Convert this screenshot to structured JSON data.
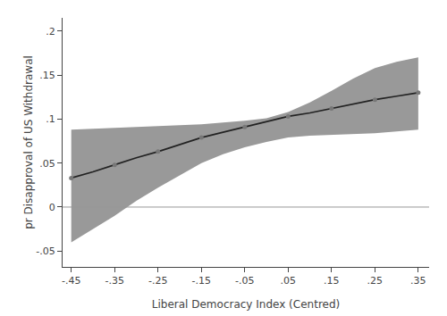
{
  "chart_data": {
    "type": "line",
    "x": [
      -0.45,
      -0.4,
      -0.35,
      -0.3,
      -0.25,
      -0.2,
      -0.15,
      -0.1,
      -0.05,
      0.0,
      0.05,
      0.1,
      0.15,
      0.2,
      0.25,
      0.3,
      0.35
    ],
    "values": [
      0.033,
      0.04,
      0.048,
      0.056,
      0.063,
      0.071,
      0.079,
      0.085,
      0.091,
      0.097,
      0.103,
      0.107,
      0.112,
      0.117,
      0.122,
      0.126,
      0.13
    ],
    "color": "#222222",
    "band": {
      "upper": [
        0.088,
        0.089,
        0.09,
        0.091,
        0.092,
        0.093,
        0.094,
        0.096,
        0.098,
        0.101,
        0.108,
        0.119,
        0.132,
        0.146,
        0.158,
        0.165,
        0.17
      ],
      "lower": [
        -0.04,
        -0.025,
        -0.01,
        0.007,
        0.022,
        0.036,
        0.05,
        0.06,
        0.068,
        0.074,
        0.079,
        0.081,
        0.082,
        0.083,
        0.084,
        0.086,
        0.088
      ],
      "color": "#999999"
    },
    "markers": {
      "x": [
        -0.45,
        -0.35,
        -0.25,
        -0.15,
        -0.05,
        0.05,
        0.15,
        0.25,
        0.35
      ],
      "values": [
        0.033,
        0.048,
        0.063,
        0.079,
        0.091,
        0.103,
        0.112,
        0.122,
        0.13
      ],
      "color": "#777777",
      "marker": "circle"
    },
    "reference_line": {
      "y": 0,
      "color": "#999999"
    },
    "xlabel": "Liberal Democracy Index (Centred)",
    "ylabel": "pr Disapproval of US Withdrawal",
    "xlim": [
      -0.47,
      0.375
    ],
    "ylim": [
      -0.068,
      0.215
    ],
    "xticks": [
      {
        "value": -0.45,
        "label": "-.45"
      },
      {
        "value": -0.35,
        "label": "-.35"
      },
      {
        "value": -0.25,
        "label": "-.25"
      },
      {
        "value": -0.15,
        "label": "-.15"
      },
      {
        "value": -0.05,
        "label": "-.05"
      },
      {
        "value": 0.05,
        "label": ".05"
      },
      {
        "value": 0.15,
        "label": ".15"
      },
      {
        "value": 0.25,
        "label": ".25"
      },
      {
        "value": 0.35,
        "label": ".35"
      }
    ],
    "yticks": [
      {
        "value": -0.05,
        "label": "-.05"
      },
      0,
      {
        "value": 0.05,
        "label": ".05"
      },
      {
        "value": 0.1,
        "label": ".1"
      },
      {
        "value": 0.15,
        "label": ".15"
      },
      {
        "value": 0.2,
        "label": ".2"
      }
    ],
    "grid": false
  }
}
